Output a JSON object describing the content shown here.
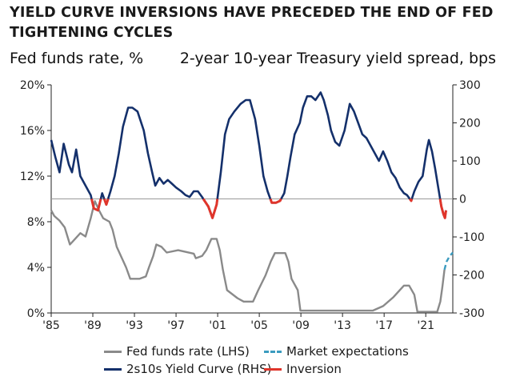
{
  "title": "YIELD CURVE INVERSIONS HAVE PRECEDED THE END OF FED TIGHTENING CYCLES",
  "left_axis_title": "Fed funds rate, %",
  "right_axis_title": "2-year 10-year Treasury yield spread, bps",
  "colors": {
    "fed_funds": "#8a8a8a",
    "curve": "#14306b",
    "inversion": "#e0352b",
    "expectations": "#3a9bbf",
    "zero_line": "#999999"
  },
  "chart_data": {
    "type": "line",
    "xlim": [
      1985,
      2023.6
    ],
    "x_ticks": [
      1985,
      1989,
      1993,
      1997,
      2001,
      2005,
      2009,
      2013,
      2017,
      2021
    ],
    "x_tick_labels": [
      "'85",
      "'89",
      "'93",
      "'97",
      "'01",
      "'05",
      "'09",
      "'13",
      "'17",
      "'21"
    ],
    "y_left": {
      "lim": [
        0,
        20
      ],
      "ticks": [
        0,
        4,
        8,
        12,
        16,
        20
      ],
      "tick_labels": [
        "0%",
        "4%",
        "8%",
        "12%",
        "16%",
        "20%"
      ]
    },
    "y_right": {
      "lim": [
        -300,
        300
      ],
      "ticks": [
        -300,
        -200,
        -100,
        0,
        100,
        200,
        300
      ],
      "tick_labels": [
        "-300",
        "-200",
        "-100",
        "0",
        "100",
        "200",
        "300"
      ]
    },
    "legend": [
      {
        "key": "fed_funds",
        "label": "Fed funds rate (LHS)"
      },
      {
        "key": "expectations",
        "label": "Market expectations"
      },
      {
        "key": "curve",
        "label": "2s10s Yield Curve (RHS)"
      },
      {
        "key": "inversion",
        "label": "Inversion"
      }
    ],
    "series": [
      {
        "name": "Fed funds rate (LHS)",
        "axis": "left",
        "style": "solid",
        "points": [
          [
            1985.0,
            9.0
          ],
          [
            1985.3,
            8.5
          ],
          [
            1985.8,
            8.1
          ],
          [
            1986.3,
            7.5
          ],
          [
            1986.8,
            6.0
          ],
          [
            1987.3,
            6.5
          ],
          [
            1987.8,
            7.0
          ],
          [
            1988.3,
            6.7
          ],
          [
            1988.8,
            8.3
          ],
          [
            1989.2,
            9.8
          ],
          [
            1989.6,
            9.0
          ],
          [
            1990.0,
            8.3
          ],
          [
            1990.6,
            8.0
          ],
          [
            1990.9,
            7.3
          ],
          [
            1991.3,
            5.8
          ],
          [
            1991.8,
            4.8
          ],
          [
            1992.2,
            4.0
          ],
          [
            1992.6,
            3.0
          ],
          [
            1993.5,
            3.0
          ],
          [
            1994.1,
            3.2
          ],
          [
            1994.4,
            4.0
          ],
          [
            1994.8,
            5.0
          ],
          [
            1995.1,
            6.0
          ],
          [
            1995.6,
            5.8
          ],
          [
            1996.1,
            5.3
          ],
          [
            1997.2,
            5.5
          ],
          [
            1998.7,
            5.2
          ],
          [
            1998.9,
            4.8
          ],
          [
            1999.5,
            5.0
          ],
          [
            1999.9,
            5.5
          ],
          [
            2000.4,
            6.5
          ],
          [
            2000.9,
            6.5
          ],
          [
            2001.2,
            5.5
          ],
          [
            2001.5,
            3.8
          ],
          [
            2001.9,
            2.0
          ],
          [
            2002.9,
            1.3
          ],
          [
            2003.5,
            1.0
          ],
          [
            2004.4,
            1.0
          ],
          [
            2004.9,
            2.0
          ],
          [
            2005.6,
            3.3
          ],
          [
            2006.1,
            4.5
          ],
          [
            2006.5,
            5.25
          ],
          [
            2007.5,
            5.25
          ],
          [
            2007.8,
            4.5
          ],
          [
            2008.1,
            3.0
          ],
          [
            2008.7,
            2.0
          ],
          [
            2008.95,
            0.2
          ],
          [
            2015.9,
            0.2
          ],
          [
            2016.9,
            0.6
          ],
          [
            2017.9,
            1.4
          ],
          [
            2018.9,
            2.4
          ],
          [
            2019.4,
            2.4
          ],
          [
            2019.9,
            1.6
          ],
          [
            2020.2,
            0.1
          ],
          [
            2022.1,
            0.1
          ],
          [
            2022.4,
            1.0
          ],
          [
            2022.6,
            2.3
          ],
          [
            2022.8,
            3.8
          ]
        ]
      },
      {
        "name": "Market expectations",
        "axis": "left",
        "style": "dashed",
        "points": [
          [
            2022.8,
            3.8
          ],
          [
            2023.0,
            4.5
          ],
          [
            2023.3,
            5.0
          ],
          [
            2023.6,
            5.3
          ]
        ]
      },
      {
        "name": "2s10s Yield Curve (RHS)",
        "axis": "right",
        "points": [
          [
            1985.0,
            155
          ],
          [
            1985.4,
            110
          ],
          [
            1985.8,
            70
          ],
          [
            1986.2,
            145
          ],
          [
            1986.7,
            90
          ],
          [
            1987.0,
            70
          ],
          [
            1987.4,
            130
          ],
          [
            1987.8,
            60
          ],
          [
            1988.4,
            30
          ],
          [
            1988.8,
            10
          ],
          [
            1989.1,
            -25
          ],
          [
            1989.5,
            -30
          ],
          [
            1989.9,
            15
          ],
          [
            1990.3,
            -15
          ],
          [
            1990.7,
            20
          ],
          [
            1991.1,
            60
          ],
          [
            1991.5,
            120
          ],
          [
            1991.9,
            190
          ],
          [
            1992.4,
            240
          ],
          [
            1992.8,
            240
          ],
          [
            1993.3,
            230
          ],
          [
            1993.9,
            180
          ],
          [
            1994.3,
            120
          ],
          [
            1994.7,
            70
          ],
          [
            1995.0,
            35
          ],
          [
            1995.4,
            55
          ],
          [
            1995.8,
            40
          ],
          [
            1996.2,
            50
          ],
          [
            1996.6,
            40
          ],
          [
            1997.0,
            30
          ],
          [
            1997.5,
            20
          ],
          [
            1997.9,
            10
          ],
          [
            1998.3,
            5
          ],
          [
            1998.7,
            20
          ],
          [
            1999.1,
            20
          ],
          [
            1999.5,
            5
          ],
          [
            2000.1,
            -20
          ],
          [
            2000.5,
            -50
          ],
          [
            2000.9,
            -15
          ],
          [
            2001.3,
            70
          ],
          [
            2001.7,
            170
          ],
          [
            2002.1,
            210
          ],
          [
            2002.6,
            230
          ],
          [
            2003.2,
            250
          ],
          [
            2003.7,
            260
          ],
          [
            2004.1,
            260
          ],
          [
            2004.6,
            210
          ],
          [
            2005.0,
            140
          ],
          [
            2005.4,
            60
          ],
          [
            2005.8,
            20
          ],
          [
            2006.2,
            -10
          ],
          [
            2006.6,
            -10
          ],
          [
            2007.0,
            -5
          ],
          [
            2007.4,
            15
          ],
          [
            2007.7,
            60
          ],
          [
            2008.0,
            110
          ],
          [
            2008.4,
            170
          ],
          [
            2008.9,
            200
          ],
          [
            2009.2,
            240
          ],
          [
            2009.6,
            270
          ],
          [
            2010.0,
            270
          ],
          [
            2010.4,
            260
          ],
          [
            2010.9,
            280
          ],
          [
            2011.2,
            260
          ],
          [
            2011.6,
            220
          ],
          [
            2011.9,
            180
          ],
          [
            2012.3,
            150
          ],
          [
            2012.7,
            140
          ],
          [
            2013.2,
            180
          ],
          [
            2013.7,
            250
          ],
          [
            2014.1,
            230
          ],
          [
            2014.5,
            200
          ],
          [
            2014.9,
            170
          ],
          [
            2015.3,
            160
          ],
          [
            2015.7,
            140
          ],
          [
            2016.1,
            120
          ],
          [
            2016.5,
            100
          ],
          [
            2016.9,
            125
          ],
          [
            2017.3,
            100
          ],
          [
            2017.7,
            70
          ],
          [
            2018.1,
            55
          ],
          [
            2018.5,
            30
          ],
          [
            2018.9,
            15
          ],
          [
            2019.2,
            10
          ],
          [
            2019.6,
            -5
          ],
          [
            2019.9,
            20
          ],
          [
            2020.3,
            45
          ],
          [
            2020.7,
            60
          ],
          [
            2021.1,
            130
          ],
          [
            2021.3,
            155
          ],
          [
            2021.6,
            125
          ],
          [
            2021.9,
            80
          ],
          [
            2022.2,
            30
          ],
          [
            2022.5,
            -20
          ],
          [
            2022.7,
            -40
          ],
          [
            2022.85,
            -50
          ],
          [
            2022.95,
            -30
          ]
        ]
      }
    ]
  }
}
